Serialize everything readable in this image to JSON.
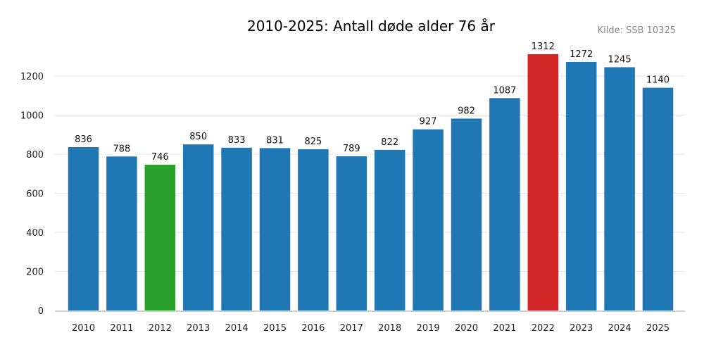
{
  "chart_data": {
    "type": "bar",
    "title": "2010-2025: Antall døde alder 76 år",
    "source": "Kilde: SSB 10325",
    "xlabel": "",
    "ylabel": "",
    "categories": [
      "2010",
      "2011",
      "2012",
      "2013",
      "2014",
      "2015",
      "2016",
      "2017",
      "2018",
      "2019",
      "2020",
      "2021",
      "2022",
      "2023",
      "2024",
      "2025"
    ],
    "values": [
      836,
      788,
      746,
      850,
      833,
      831,
      825,
      789,
      822,
      927,
      982,
      1087,
      1312,
      1272,
      1245,
      1140
    ],
    "ylim": [
      0,
      1380
    ],
    "yticks": [
      0,
      200,
      400,
      600,
      800,
      1000,
      1200
    ],
    "grid": true,
    "colors": {
      "default": "#1f77b4",
      "min": "#2ca02c",
      "max": "#d62728"
    },
    "highlight": {
      "min_year": "2012",
      "max_year": "2022"
    }
  }
}
